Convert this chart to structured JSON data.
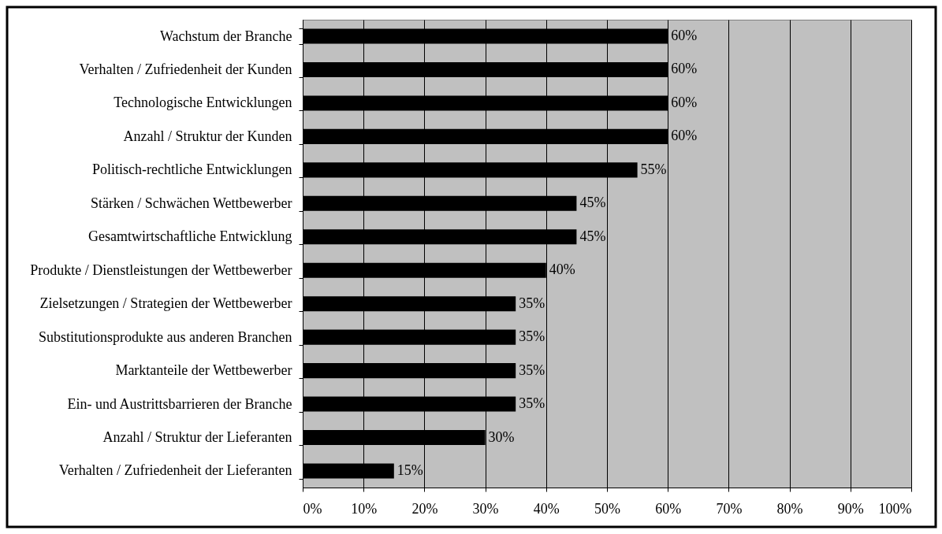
{
  "chart_data": {
    "type": "bar",
    "orientation": "horizontal",
    "categories": [
      "Wachstum der Branche",
      "Verhalten / Zufriedenheit der Kunden",
      "Technologische Entwicklungen",
      "Anzahl / Struktur der Kunden",
      "Politisch-rechtliche Entwicklungen",
      "Stärken / Schwächen Wettbewerber",
      "Gesamtwirtschaftliche Entwicklung",
      "Produkte / Dienstleistungen der Wettbewerber",
      "Zielsetzungen / Strategien der Wettbewerber",
      "Substitutionsprodukte aus anderen Branchen",
      "Marktanteile der Wettbewerber",
      "Ein- und Austrittsbarrieren der Branche",
      "Anzahl / Struktur der Lieferanten",
      "Verhalten / Zufriedenheit der Lieferanten"
    ],
    "values": [
      60,
      60,
      60,
      60,
      55,
      45,
      45,
      40,
      35,
      35,
      35,
      35,
      30,
      15
    ],
    "value_labels": [
      "60%",
      "60%",
      "60%",
      "60%",
      "55%",
      "45%",
      "45%",
      "40%",
      "35%",
      "35%",
      "35%",
      "35%",
      "30%",
      "15%"
    ],
    "color": "#000000",
    "xlim": [
      0,
      100
    ],
    "xticks": [
      {
        "value": 0,
        "label": "0%"
      },
      {
        "value": 10,
        "label": "10%"
      },
      {
        "value": 20,
        "label": "20%"
      },
      {
        "value": 30,
        "label": "30%"
      },
      {
        "value": 40,
        "label": "40%"
      },
      {
        "value": 50,
        "label": "50%"
      },
      {
        "value": 60,
        "label": "60%"
      },
      {
        "value": 70,
        "label": "70%"
      },
      {
        "value": 80,
        "label": "80%"
      },
      {
        "value": 90,
        "label": "90%"
      },
      {
        "value": 100,
        "label": "100%"
      }
    ],
    "grid": "x"
  }
}
